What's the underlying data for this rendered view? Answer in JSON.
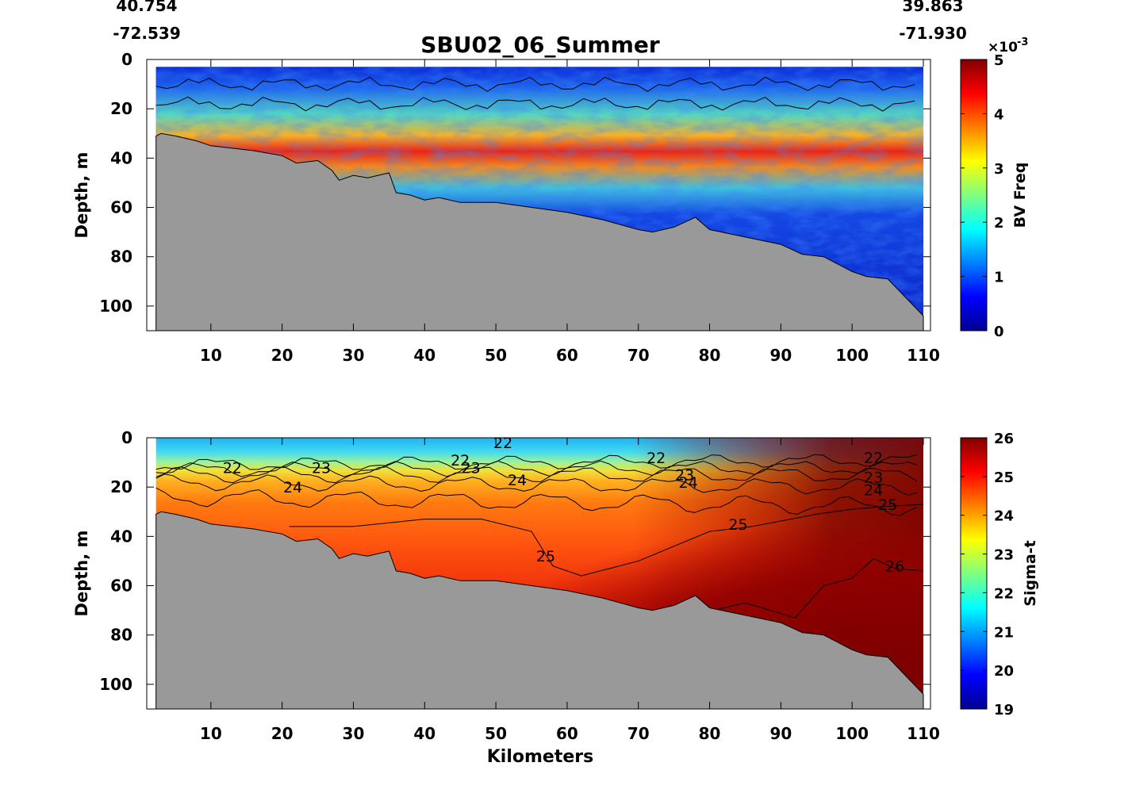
{
  "figure": {
    "title": "SBU02_06_Summer",
    "start_lat": "40.754",
    "start_lon": "-72.539",
    "end_lat": "39.863",
    "end_lon": "-71.930"
  },
  "chart_data": [
    {
      "type": "heatmap",
      "name": "bv-frequency-section",
      "xlabel": "",
      "ylabel": "Depth, m",
      "xlim": [
        1,
        111
      ],
      "ylim": [
        110,
        0
      ],
      "y_reversed": true,
      "xticks": [
        10,
        20,
        30,
        40,
        50,
        60,
        70,
        80,
        90,
        100,
        110
      ],
      "yticks": [
        0,
        20,
        40,
        60,
        80,
        100
      ],
      "colormap": "jet",
      "colorbar": {
        "label": "BV Freq",
        "min": 0,
        "max": 5,
        "ticks": [
          0,
          1,
          2,
          3,
          4,
          5
        ],
        "exponent_label": "×10",
        "exponent": "-3"
      },
      "seafloor_color": "#999999",
      "seafloor_profile": {
        "x": [
          2.3,
          3,
          5,
          8,
          10,
          13,
          16,
          20,
          22,
          25,
          27,
          28,
          30,
          32,
          35,
          36,
          38,
          40,
          42,
          45,
          50,
          55,
          60,
          65,
          70,
          72,
          75,
          78,
          80,
          85,
          90,
          93,
          96,
          100,
          102,
          105,
          107,
          110
        ],
        "depth": [
          31,
          30,
          31,
          33,
          35,
          36,
          37,
          39,
          42,
          41,
          45,
          49,
          47,
          48,
          46,
          54,
          55,
          57,
          56,
          58,
          58,
          60,
          62,
          65,
          69,
          70,
          68,
          64,
          69,
          72,
          75,
          79,
          80,
          86,
          88,
          89,
          95,
          104
        ]
      },
      "water_surface_depth": 3,
      "features": {
        "pycnocline_peak_depth": [
          10,
          18
        ],
        "peak_value": 5,
        "background_value": 0.5
      }
    },
    {
      "type": "heatmap",
      "name": "sigma-t-section",
      "xlabel": "Kilometers",
      "ylabel": "Depth, m",
      "xlim": [
        1,
        111
      ],
      "ylim": [
        110,
        0
      ],
      "y_reversed": true,
      "xticks": [
        10,
        20,
        30,
        40,
        50,
        60,
        70,
        80,
        90,
        100,
        110
      ],
      "yticks": [
        0,
        20,
        40,
        60,
        80,
        100
      ],
      "colormap": "jet",
      "colorbar": {
        "label": "Sigma-t",
        "min": 19,
        "max": 26,
        "ticks": [
          19,
          20,
          21,
          22,
          23,
          24,
          25,
          26
        ]
      },
      "seafloor_color": "#999999",
      "contour_labels": [
        {
          "text": "22",
          "x": 51,
          "depth": 2
        },
        {
          "text": "22",
          "x": 13,
          "depth": 12
        },
        {
          "text": "23",
          "x": 25.5,
          "depth": 12
        },
        {
          "text": "24",
          "x": 21.5,
          "depth": 20
        },
        {
          "text": "22",
          "x": 45,
          "depth": 9
        },
        {
          "text": "23",
          "x": 46.5,
          "depth": 12
        },
        {
          "text": "24",
          "x": 53,
          "depth": 17
        },
        {
          "text": "22",
          "x": 72.5,
          "depth": 8
        },
        {
          "text": "23",
          "x": 76.5,
          "depth": 15
        },
        {
          "text": "24",
          "x": 77,
          "depth": 18
        },
        {
          "text": "22",
          "x": 103,
          "depth": 8
        },
        {
          "text": "23",
          "x": 103,
          "depth": 16
        },
        {
          "text": "24",
          "x": 103,
          "depth": 21
        },
        {
          "text": "25",
          "x": 105,
          "depth": 27
        },
        {
          "text": "25",
          "x": 84,
          "depth": 35
        },
        {
          "text": "25",
          "x": 57,
          "depth": 48
        },
        {
          "text": "26",
          "x": 106,
          "depth": 52
        }
      ]
    }
  ]
}
